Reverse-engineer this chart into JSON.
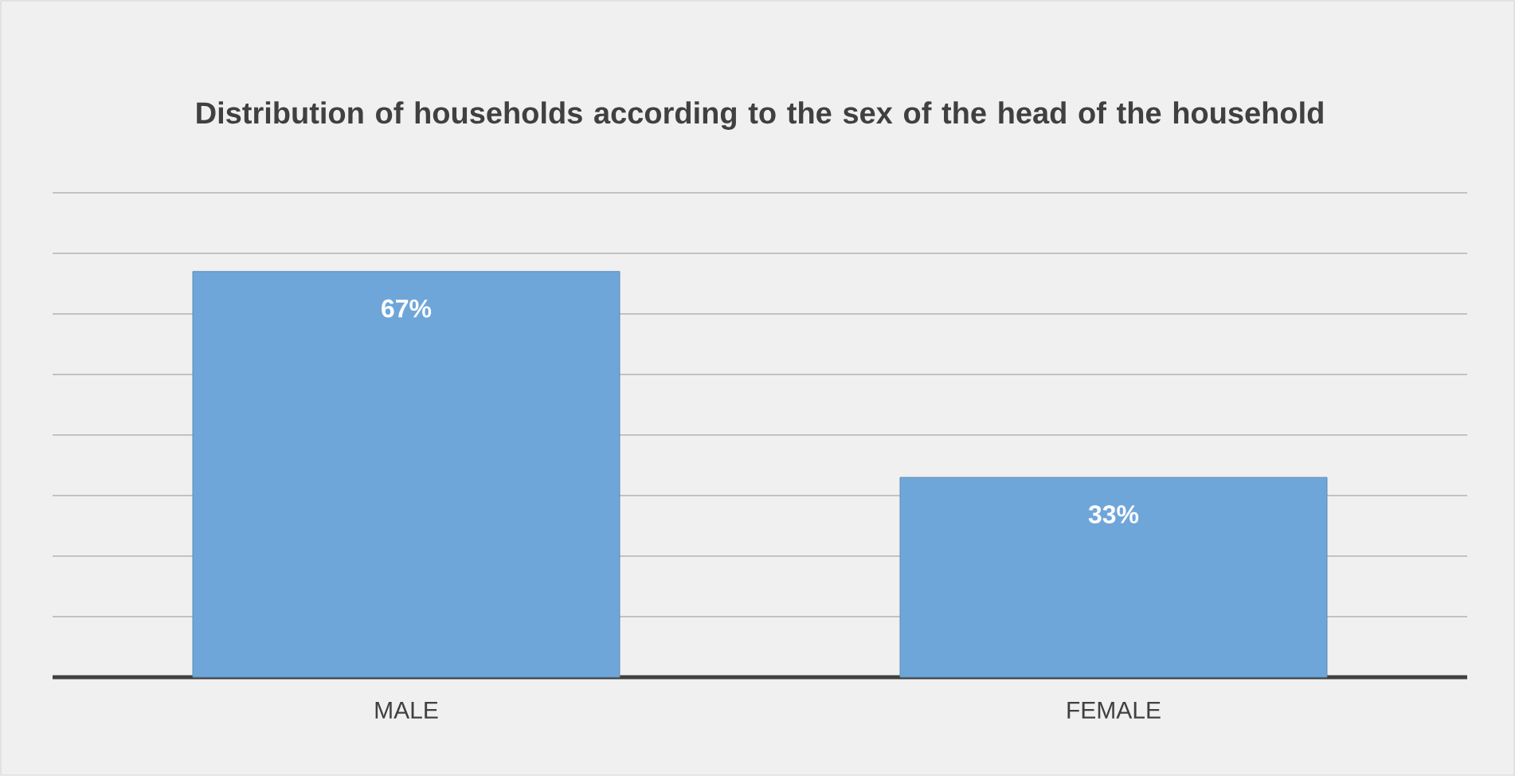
{
  "chart_data": {
    "type": "bar",
    "title": "Distribution of households according to the sex of the head of the household",
    "categories": [
      "MALE",
      "FEMALE"
    ],
    "values": [
      67,
      33
    ],
    "value_labels": [
      "67%",
      "33%"
    ],
    "color": "#6fa6da",
    "ylim": [
      0,
      80
    ],
    "yticks": [
      {
        "value": 0,
        "label": null
      },
      {
        "value": 10,
        "label": null
      },
      {
        "value": 20,
        "label": null
      },
      {
        "value": 30,
        "label": null
      },
      {
        "value": 40,
        "label": null
      },
      {
        "value": 50,
        "label": null
      },
      {
        "value": 60,
        "label": null
      },
      {
        "value": 70,
        "label": null
      },
      {
        "value": 80,
        "label": null
      }
    ],
    "tick_labels": "x",
    "grid": "y"
  }
}
